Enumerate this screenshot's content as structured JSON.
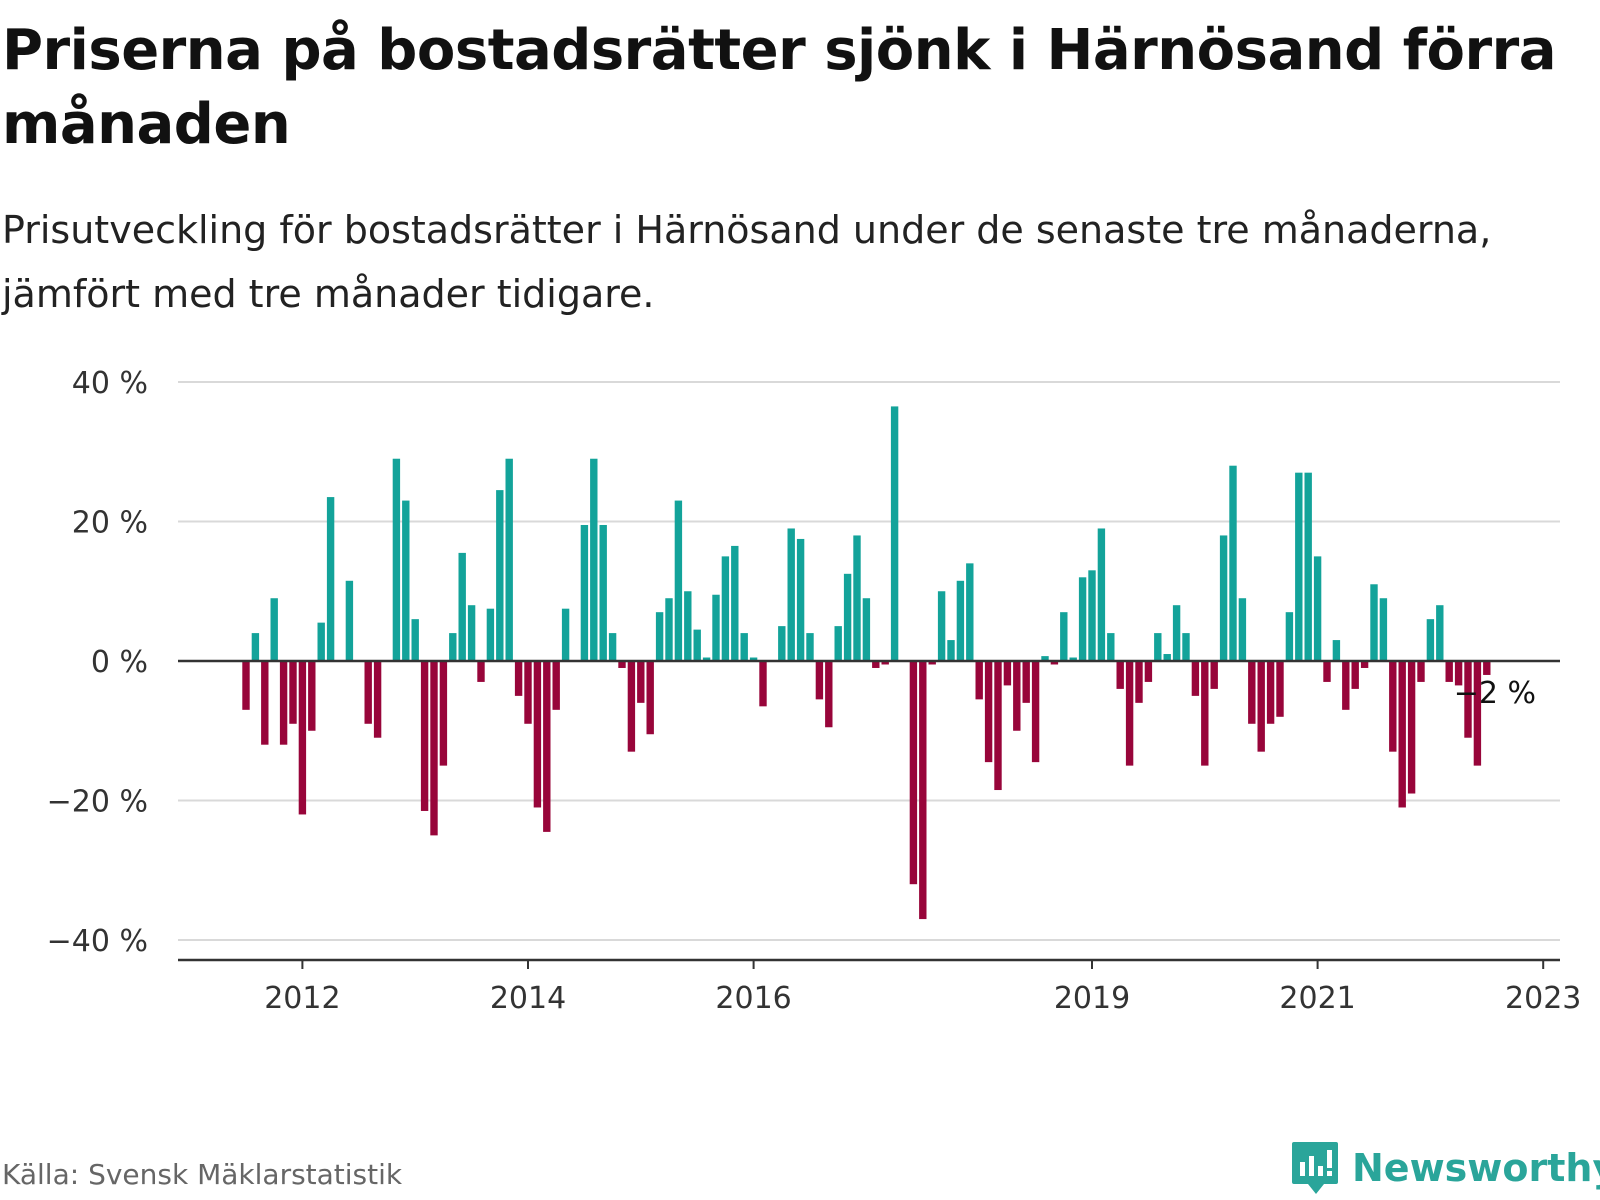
{
  "title": "Priserna på bostadsrätter sjönk i Härnösand förra månaden",
  "subtitle": "Prisutveckling för bostadsrätter i Härnösand under de senaste tre månaderna, jämfört med tre månader tidigare.",
  "source": "Källa: Svensk Mäklarstatistik",
  "brand": {
    "name": "Newsworthy",
    "logo_icon": "bar-chart-speech-bubble-icon",
    "color": "#2aa59a"
  },
  "colors": {
    "positive": "#13a39a",
    "negative": "#98053a",
    "gridline": "#d9d9d9",
    "zero_line": "#333333"
  },
  "chart_data": {
    "type": "bar",
    "start_month": "2011-07",
    "frequency": "monthly",
    "unit": "%",
    "ylim": [
      -40,
      40
    ],
    "yticks": [
      40,
      20,
      0,
      -20,
      -40
    ],
    "ytick_labels": [
      "40 %",
      "20 %",
      "0 %",
      "−20 %",
      "−40 %"
    ],
    "xticks": [
      "2012",
      "2014",
      "2016",
      "2019",
      "2021",
      "2023"
    ],
    "grid": true,
    "legend": "none",
    "annotation": {
      "text": "−2 %",
      "target": "last"
    },
    "values": [
      -7,
      4,
      -12,
      9,
      -12,
      -9,
      -22,
      -10,
      5.5,
      23.5,
      0,
      11.5,
      0,
      -9,
      -11,
      0,
      29,
      23,
      6,
      -21.5,
      -25,
      -15,
      4,
      15.5,
      8,
      -3,
      7.5,
      24.5,
      29,
      -5,
      -9,
      -21,
      -24.5,
      -7,
      7.5,
      0,
      19.5,
      29,
      19.5,
      4,
      -1,
      -13,
      -6,
      -10.5,
      7,
      9,
      23,
      10,
      4.5,
      0.5,
      9.5,
      15,
      16.5,
      4,
      0.5,
      -6.5,
      0,
      5,
      19,
      17.5,
      4,
      -5.5,
      -9.5,
      5,
      12.5,
      18,
      9,
      -1,
      -0.5,
      36.5,
      0,
      -32,
      -37,
      -0.5,
      10,
      3,
      11.5,
      14,
      -5.5,
      -14.5,
      -18.5,
      -3.5,
      -10,
      -6,
      -14.5,
      0.7,
      -0.5,
      7,
      0.5,
      12,
      13,
      19,
      4,
      -4,
      -15,
      -6,
      -3,
      4,
      1,
      8,
      4,
      -5,
      -15,
      -4,
      18,
      28,
      9,
      -9,
      -13,
      -9,
      -8,
      7,
      27,
      27,
      15,
      -3,
      3,
      -7,
      -4,
      -1,
      11,
      9,
      -13,
      -21,
      -19,
      -3,
      6,
      8,
      -3,
      -3.5,
      -11,
      -15,
      -2
    ]
  }
}
